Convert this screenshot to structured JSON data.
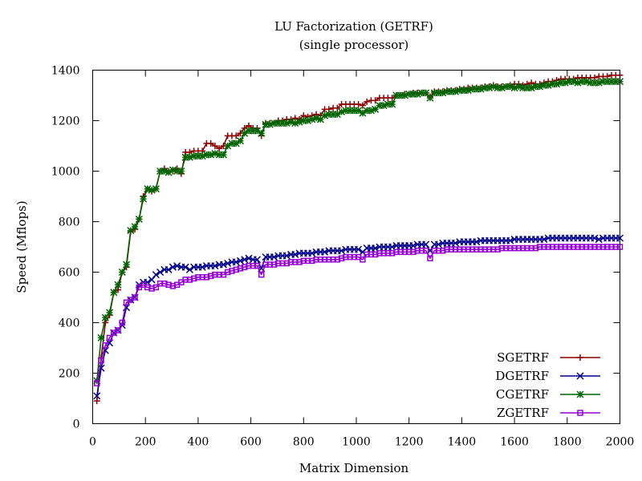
{
  "chart_data": {
    "type": "line",
    "title": "LU Factorization (GETRF)",
    "subtitle": "(single processor)",
    "xlabel": "Matrix Dimension",
    "ylabel": "Speed (Mflops)",
    "xlim": [
      0,
      2000
    ],
    "ylim": [
      0,
      1400
    ],
    "x_ticks": [
      0,
      200,
      400,
      600,
      800,
      1000,
      1200,
      1400,
      1600,
      1800,
      2000
    ],
    "y_ticks": [
      0,
      200,
      400,
      600,
      800,
      1000,
      1200,
      1400
    ],
    "grid": false,
    "legend_position": "bottom-right",
    "x": [
      16,
      32,
      48,
      64,
      80,
      96,
      112,
      128,
      144,
      160,
      176,
      192,
      208,
      224,
      240,
      256,
      272,
      288,
      304,
      320,
      336,
      352,
      368,
      384,
      400,
      416,
      432,
      448,
      464,
      480,
      496,
      512,
      528,
      544,
      560,
      576,
      592,
      608,
      624,
      640,
      656,
      672,
      688,
      704,
      720,
      736,
      752,
      768,
      784,
      800,
      816,
      832,
      848,
      864,
      880,
      896,
      912,
      928,
      944,
      960,
      976,
      992,
      1008,
      1024,
      1040,
      1056,
      1072,
      1088,
      1104,
      1120,
      1136,
      1152,
      1168,
      1184,
      1200,
      1216,
      1232,
      1248,
      1264,
      1280,
      1296,
      1312,
      1328,
      1344,
      1360,
      1376,
      1392,
      1408,
      1424,
      1440,
      1456,
      1472,
      1488,
      1504,
      1520,
      1536,
      1552,
      1568,
      1584,
      1600,
      1616,
      1632,
      1648,
      1664,
      1680,
      1696,
      1712,
      1728,
      1744,
      1760,
      1776,
      1792,
      1808,
      1824,
      1840,
      1856,
      1872,
      1888,
      1904,
      1920,
      1936,
      1952,
      1968,
      1984,
      2000
    ],
    "series": [
      {
        "name": "SGETRF",
        "color": "#8b0000",
        "marker": "plus",
        "values": [
          90,
          260,
          400,
          430,
          520,
          530,
          600,
          620,
          760,
          770,
          810,
          900,
          930,
          920,
          930,
          1000,
          1010,
          1000,
          1000,
          1010,
          990,
          1075,
          1075,
          1080,
          1080,
          1080,
          1110,
          1110,
          1100,
          1090,
          1100,
          1140,
          1140,
          1140,
          1150,
          1170,
          1180,
          1170,
          1170,
          1140,
          1190,
          1190,
          1190,
          1200,
          1200,
          1205,
          1205,
          1210,
          1205,
          1220,
          1215,
          1220,
          1225,
          1220,
          1245,
          1245,
          1250,
          1250,
          1265,
          1265,
          1265,
          1265,
          1265,
          1260,
          1275,
          1280,
          1280,
          1290,
          1290,
          1290,
          1290,
          1300,
          1300,
          1305,
          1305,
          1310,
          1310,
          1310,
          1310,
          1295,
          1315,
          1315,
          1315,
          1320,
          1320,
          1320,
          1325,
          1325,
          1330,
          1330,
          1330,
          1330,
          1335,
          1335,
          1340,
          1335,
          1335,
          1335,
          1340,
          1345,
          1345,
          1340,
          1345,
          1350,
          1345,
          1345,
          1350,
          1355,
          1355,
          1360,
          1365,
          1365,
          1365,
          1365,
          1370,
          1370,
          1370,
          1370,
          1370,
          1375,
          1375,
          1375,
          1380,
          1380,
          1380
        ]
      },
      {
        "name": "DGETRF",
        "color": "#00008b",
        "marker": "cross",
        "values": [
          110,
          220,
          290,
          320,
          360,
          370,
          390,
          460,
          490,
          500,
          550,
          560,
          560,
          570,
          590,
          600,
          610,
          610,
          620,
          625,
          620,
          620,
          610,
          620,
          620,
          620,
          625,
          625,
          625,
          630,
          630,
          635,
          640,
          640,
          645,
          650,
          655,
          650,
          650,
          615,
          660,
          660,
          660,
          665,
          665,
          665,
          670,
          670,
          675,
          675,
          675,
          675,
          680,
          680,
          680,
          685,
          685,
          685,
          685,
          690,
          690,
          690,
          690,
          680,
          695,
          695,
          695,
          700,
          700,
          700,
          700,
          705,
          705,
          705,
          705,
          705,
          710,
          710,
          710,
          685,
          710,
          710,
          715,
          715,
          715,
          715,
          720,
          720,
          720,
          720,
          720,
          725,
          725,
          725,
          725,
          725,
          725,
          725,
          725,
          730,
          730,
          730,
          730,
          730,
          730,
          730,
          730,
          735,
          735,
          735,
          735,
          735,
          735,
          735,
          735,
          735,
          735,
          735,
          735,
          730,
          735,
          735,
          735,
          735,
          735
        ]
      },
      {
        "name": "CGETRF",
        "color": "#006400",
        "marker": "star",
        "values": [
          170,
          340,
          420,
          440,
          520,
          550,
          600,
          630,
          765,
          780,
          810,
          890,
          930,
          925,
          930,
          1000,
          1000,
          995,
          1005,
          1000,
          1000,
          1055,
          1055,
          1060,
          1060,
          1060,
          1065,
          1065,
          1070,
          1065,
          1065,
          1100,
          1110,
          1110,
          1120,
          1150,
          1160,
          1160,
          1160,
          1150,
          1185,
          1185,
          1190,
          1190,
          1190,
          1190,
          1195,
          1190,
          1195,
          1200,
          1200,
          1205,
          1210,
          1205,
          1220,
          1225,
          1225,
          1225,
          1235,
          1240,
          1240,
          1240,
          1240,
          1230,
          1240,
          1240,
          1245,
          1260,
          1260,
          1265,
          1265,
          1300,
          1300,
          1300,
          1305,
          1305,
          1305,
          1310,
          1310,
          1290,
          1310,
          1310,
          1310,
          1315,
          1315,
          1315,
          1320,
          1320,
          1320,
          1325,
          1325,
          1325,
          1330,
          1330,
          1335,
          1330,
          1330,
          1335,
          1335,
          1330,
          1335,
          1330,
          1330,
          1330,
          1335,
          1335,
          1340,
          1340,
          1345,
          1345,
          1350,
          1350,
          1355,
          1355,
          1350,
          1355,
          1355,
          1350,
          1350,
          1350,
          1355,
          1355,
          1355,
          1355,
          1355
        ]
      },
      {
        "name": "ZGETRF",
        "color": "#9400d3",
        "marker": "square",
        "values": [
          160,
          250,
          310,
          340,
          360,
          370,
          400,
          480,
          490,
          500,
          540,
          550,
          540,
          535,
          540,
          555,
          555,
          550,
          545,
          550,
          560,
          570,
          570,
          575,
          580,
          580,
          580,
          585,
          590,
          590,
          590,
          600,
          605,
          610,
          615,
          620,
          625,
          625,
          625,
          590,
          630,
          630,
          630,
          635,
          635,
          635,
          640,
          640,
          640,
          645,
          645,
          645,
          650,
          650,
          650,
          650,
          650,
          650,
          655,
          660,
          660,
          660,
          660,
          650,
          670,
          670,
          670,
          675,
          675,
          675,
          675,
          680,
          680,
          680,
          680,
          680,
          685,
          685,
          685,
          655,
          685,
          685,
          685,
          690,
          690,
          690,
          690,
          690,
          690,
          690,
          690,
          690,
          690,
          690,
          690,
          690,
          695,
          695,
          695,
          695,
          695,
          695,
          695,
          695,
          695,
          700,
          700,
          700,
          700,
          700,
          700,
          700,
          700,
          700,
          700,
          700,
          700,
          700,
          700,
          700,
          700,
          700,
          700,
          700,
          700
        ]
      }
    ]
  }
}
